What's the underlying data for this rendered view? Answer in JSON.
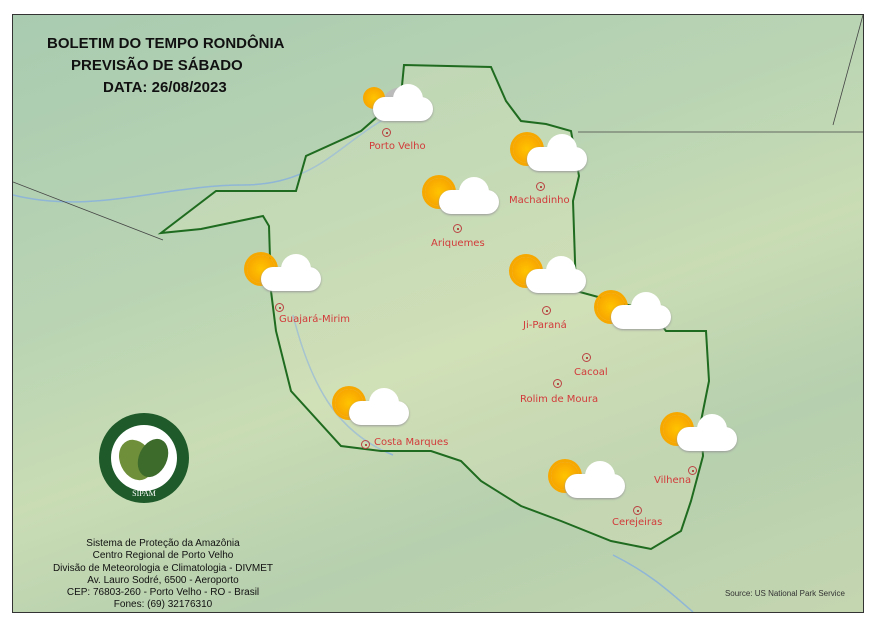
{
  "title": {
    "line1": "BOLETIM DO TEMPO RONDÔNIA",
    "line2": "PREVISÃO DE SÁBADO",
    "line3": "DATA: 26/08/2023"
  },
  "cities": [
    {
      "name": "Porto Velho",
      "forecast": "cloudy-partly-sunny"
    },
    {
      "name": "Machadinho",
      "forecast": "partly-cloudy"
    },
    {
      "name": "Ariquemes",
      "forecast": "partly-cloudy"
    },
    {
      "name": "Guajará-Mirim",
      "forecast": "partly-cloudy"
    },
    {
      "name": "Ji-Paraná",
      "forecast": "partly-cloudy"
    },
    {
      "name": "Cacoal",
      "forecast": "partly-cloudy"
    },
    {
      "name": "Rolim de Moura",
      "forecast": "partly-cloudy"
    },
    {
      "name": "Costa Marques",
      "forecast": "partly-cloudy"
    },
    {
      "name": "Vilhena",
      "forecast": "partly-cloudy"
    },
    {
      "name": "Cerejeiras",
      "forecast": "partly-cloudy"
    }
  ],
  "logo": {
    "text": "SISTEMA DE PROTEÇÃO DA AMAZÔNIA",
    "abbr": "SIPAM"
  },
  "footer": [
    "Sistema de Proteção da Amazônia",
    "Centro Regional de Porto Velho",
    "Divisão de Meteorologia e Climatologia - DIVMET",
    "Av. Lauro Sodré, 6500 - Aeroporto",
    "CEP: 76803-260 - Porto Velho - RO - Brasil",
    "Fones: (69) 32176310"
  ],
  "source": "Source: US National Park Service",
  "colors": {
    "border": "#1f6b1f",
    "city_label": "#d23a3a"
  }
}
